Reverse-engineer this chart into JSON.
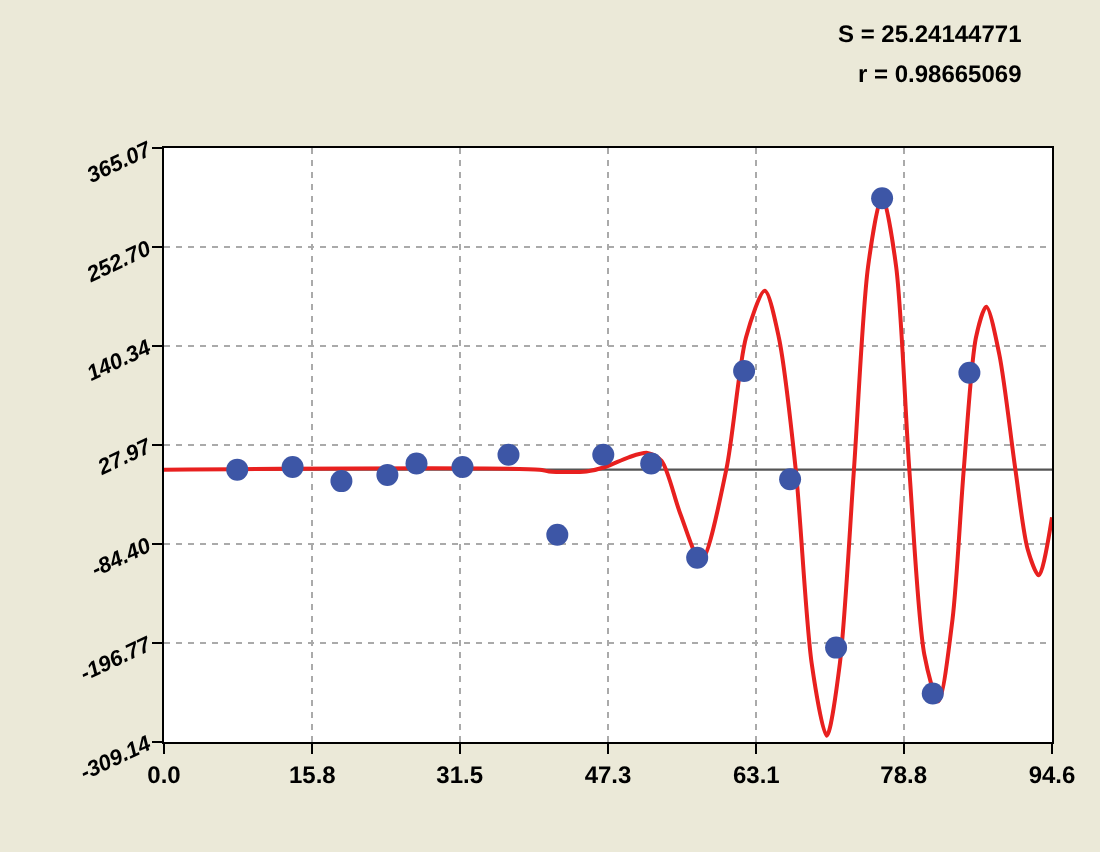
{
  "chart_data": {
    "type": "scatter",
    "annotations": [
      "S = 25.24144771",
      "r = 0.98665069"
    ],
    "series": [
      {
        "color": "#3d56a6",
        "marker": "circle",
        "x": [
          7.8,
          13.7,
          18.9,
          23.8,
          26.9,
          31.8,
          36.7,
          41.9,
          46.8,
          51.9,
          56.8,
          61.8,
          66.7,
          71.6,
          76.5,
          81.9,
          85.8
        ],
        "values": [
          0,
          3,
          -13,
          -6,
          7,
          3,
          17,
          -74,
          17,
          7,
          -100,
          112,
          -11,
          -202,
          308,
          -254,
          110
        ]
      },
      {
        "type": "line",
        "color": "#e8201f",
        "marker": "none",
        "line_style": "solid",
        "x": [
          0,
          40,
          41,
          45,
          47,
          49.5,
          51.5,
          53,
          55,
          57.2,
          59.9,
          62,
          64,
          65.5,
          67.3,
          69,
          70.6,
          72,
          73.5,
          75,
          76.5,
          78,
          79.4,
          81,
          82.5,
          84,
          85.2,
          86.5,
          87.6,
          89,
          90.7,
          92,
          93.2,
          94.6
        ],
        "values": [
          0,
          0,
          -2,
          -2,
          3,
          14,
          19,
          10,
          -50,
          -104,
          0,
          150,
          203,
          150,
          0,
          -220,
          -302,
          -220,
          0,
          230,
          310,
          230,
          0,
          -210,
          -263,
          -170,
          0,
          150,
          185,
          130,
          0,
          -90,
          -120,
          -54
        ]
      }
    ],
    "ref_lines": [
      {
        "axis": "y",
        "value": 0,
        "color": "#555555"
      }
    ],
    "xlim": [
      0,
      94.6
    ],
    "ylim": [
      -309.14,
      365.07
    ],
    "xticks": [
      {
        "value": 0,
        "label": "0.0"
      },
      15.8,
      31.5,
      47.3,
      63.1,
      78.8,
      94.6
    ],
    "yticks": [
      -309.14,
      -196.77,
      {
        "value": -84.4,
        "label": "-84.40"
      },
      27.97,
      140.34,
      {
        "value": 252.7,
        "label": "252.70"
      },
      365.07
    ],
    "grid": true
  }
}
